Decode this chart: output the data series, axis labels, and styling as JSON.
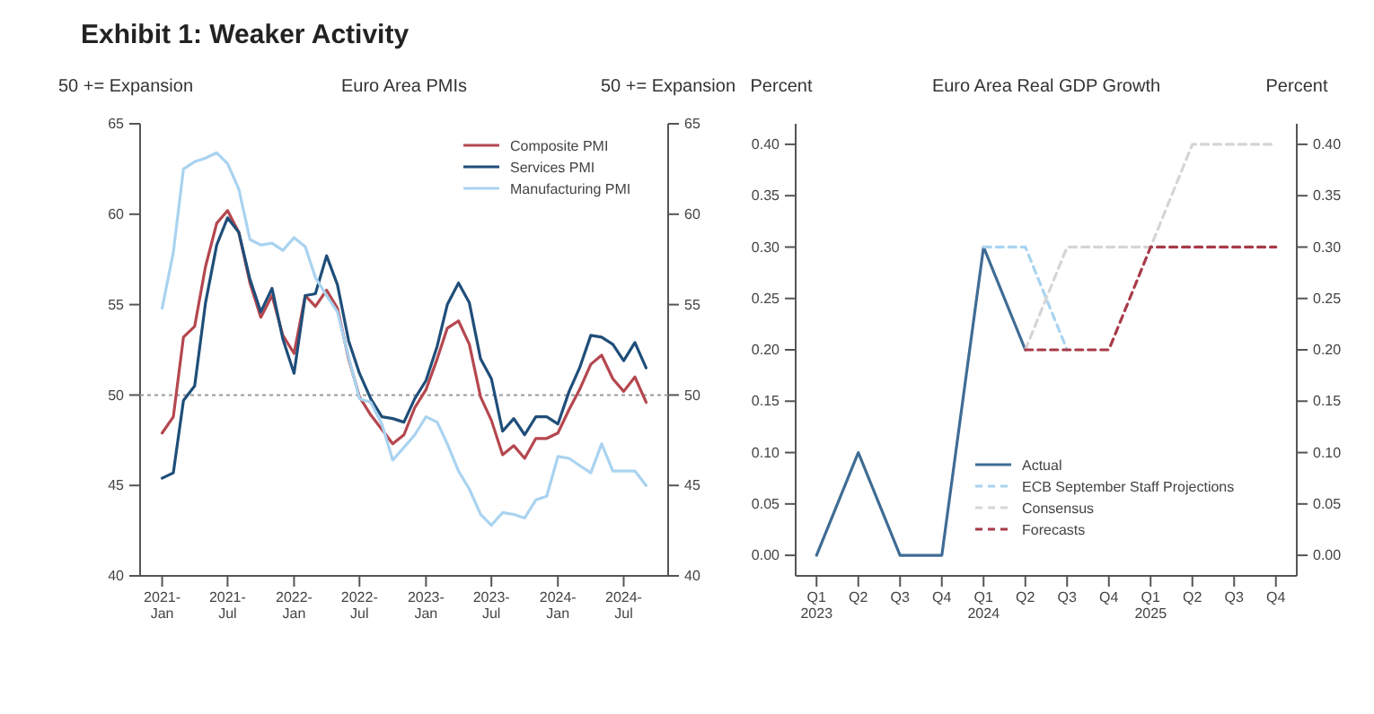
{
  "chart_data": [
    {
      "type": "line",
      "title": "Euro Area PMIs",
      "ylabel": "50 += Expansion",
      "y2label": "50 += Expansion",
      "annotations": [
        "Exhibit 1: Weaker Activity"
      ],
      "x": [
        "2021-01",
        "2021-02",
        "2021-03",
        "2021-04",
        "2021-05",
        "2021-06",
        "2021-07",
        "2021-08",
        "2021-09",
        "2021-10",
        "2021-11",
        "2021-12",
        "2022-01",
        "2022-02",
        "2022-03",
        "2022-04",
        "2022-05",
        "2022-06",
        "2022-07",
        "2022-08",
        "2022-09",
        "2022-10",
        "2022-11",
        "2022-12",
        "2023-01",
        "2023-02",
        "2023-03",
        "2023-04",
        "2023-05",
        "2023-06",
        "2023-07",
        "2023-08",
        "2023-09",
        "2023-10",
        "2023-11",
        "2023-12",
        "2024-01",
        "2024-02",
        "2024-03",
        "2024-04",
        "2024-05",
        "2024-06",
        "2024-07",
        "2024-08",
        "2024-09"
      ],
      "series": [
        {
          "name": "Composite PMI",
          "color": "#b5474f",
          "values": [
            47.9,
            48.8,
            53.2,
            53.8,
            57.1,
            59.5,
            60.2,
            59.0,
            56.2,
            54.3,
            55.5,
            53.3,
            52.3,
            55.5,
            54.9,
            55.8,
            54.8,
            52.0,
            49.9,
            48.9,
            48.1,
            47.3,
            47.8,
            49.3,
            50.3,
            52.0,
            53.7,
            54.1,
            52.8,
            49.9,
            48.6,
            46.7,
            47.2,
            46.5,
            47.6,
            47.6,
            47.9,
            49.2,
            50.3,
            51.7,
            52.2,
            50.9,
            50.2,
            51.0,
            49.6
          ]
        },
        {
          "name": "Services PMI",
          "color": "#1f4e79",
          "values": [
            45.4,
            45.7,
            49.7,
            50.5,
            55.1,
            58.3,
            59.8,
            59.0,
            56.4,
            54.6,
            55.9,
            53.1,
            51.2,
            55.5,
            55.6,
            57.7,
            56.1,
            53.0,
            51.2,
            49.8,
            48.8,
            48.7,
            48.5,
            49.8,
            50.8,
            52.7,
            55.0,
            56.2,
            55.1,
            52.0,
            50.9,
            48.0,
            48.7,
            47.8,
            48.8,
            48.8,
            48.4,
            50.2,
            51.5,
            53.3,
            53.2,
            52.8,
            51.9,
            52.9,
            51.5
          ]
        },
        {
          "name": "Manufacturing PMI",
          "color": "#a9d3f0",
          "values": [
            54.8,
            57.9,
            62.5,
            62.9,
            63.1,
            63.4,
            62.8,
            61.4,
            58.6,
            58.3,
            58.4,
            58.0,
            58.7,
            58.2,
            56.5,
            55.5,
            54.6,
            52.1,
            49.8,
            49.6,
            48.4,
            46.4,
            47.1,
            47.8,
            48.8,
            48.5,
            47.3,
            45.8,
            44.8,
            43.4,
            42.8,
            43.5,
            43.4,
            43.2,
            44.2,
            44.4,
            46.6,
            46.5,
            46.1,
            45.7,
            47.3,
            45.8,
            45.8,
            45.8,
            45.0
          ]
        }
      ],
      "xlim": [
        "2020-11",
        "2024-11"
      ],
      "xticks": [
        {
          "value": "2021-01",
          "label": "2021-\nJan"
        },
        {
          "value": "2021-07",
          "label": "2021-\nJul"
        },
        {
          "value": "2022-01",
          "label": "2022-\nJan"
        },
        {
          "value": "2022-07",
          "label": "2022-\nJul"
        },
        {
          "value": "2023-01",
          "label": "2023-\nJan"
        },
        {
          "value": "2023-07",
          "label": "2023-\nJul"
        },
        {
          "value": "2024-01",
          "label": "2024-\nJan"
        },
        {
          "value": "2024-07",
          "label": "2024-\nJul"
        }
      ],
      "ylim": [
        40,
        65
      ],
      "yticks": [
        40,
        45,
        50,
        55,
        60,
        65
      ],
      "y2lim": [
        40,
        65
      ],
      "y2ticks": [
        40,
        45,
        50,
        55,
        60,
        65
      ],
      "ref_lines": [
        {
          "axis": "y",
          "value": 50,
          "color": "#9a9a9a",
          "line_style": "dotted"
        }
      ],
      "legend": "top right",
      "grid": false,
      "line_style": "solid"
    },
    {
      "type": "line",
      "title": "Euro Area Real GDP Growth",
      "ylabel": "Percent",
      "y2label": "Percent",
      "categories": [
        "Q1\n2023",
        "Q2",
        "Q3",
        "Q4",
        "Q1\n2024",
        "Q2",
        "Q3",
        "Q4",
        "Q1\n2025",
        "Q2",
        "Q3",
        "Q4"
      ],
      "series": [
        {
          "name": "Actual",
          "color": "#3f6c94",
          "line_style": "solid",
          "values": [
            0,
            0.1,
            0,
            0,
            0.3,
            0.2,
            null,
            null,
            null,
            null,
            null,
            null
          ]
        },
        {
          "name": "ECB September Staff Projections",
          "color": "#a9d3f0",
          "line_style": "dashed",
          "values": [
            null,
            null,
            null,
            null,
            0.3,
            0.3,
            0.2,
            null,
            null,
            null,
            null,
            null
          ]
        },
        {
          "name": "Consensus",
          "color": "#d5d5d5",
          "line_style": "dashed",
          "values": [
            null,
            null,
            null,
            null,
            null,
            0.2,
            0.3,
            0.3,
            0.3,
            0.4,
            0.4,
            0.4
          ]
        },
        {
          "name": "Forecasts",
          "color": "#a83a48",
          "line_style": "dashed",
          "values": [
            null,
            null,
            null,
            null,
            null,
            0.2,
            0.2,
            0.2,
            0.3,
            0.3,
            0.3,
            0.3
          ]
        }
      ],
      "ylim": [
        -0.02,
        0.42
      ],
      "yticks": [
        {
          "value": 0,
          "label": "0.00"
        },
        {
          "value": 0.05,
          "label": "0.05"
        },
        {
          "value": 0.1,
          "label": "0.10"
        },
        {
          "value": 0.15,
          "label": "0.15"
        },
        {
          "value": 0.2,
          "label": "0.20"
        },
        {
          "value": 0.25,
          "label": "0.25"
        },
        {
          "value": 0.3,
          "label": "0.30"
        },
        {
          "value": 0.35,
          "label": "0.35"
        },
        {
          "value": 0.4,
          "label": "0.40"
        }
      ],
      "y2lim": [
        -0.02,
        0.42
      ],
      "y2ticks": [
        {
          "value": 0,
          "label": "0.00"
        },
        {
          "value": 0.05,
          "label": "0.05"
        },
        {
          "value": 0.1,
          "label": "0.10"
        },
        {
          "value": 0.15,
          "label": "0.15"
        },
        {
          "value": 0.2,
          "label": "0.20"
        },
        {
          "value": 0.25,
          "label": "0.25"
        },
        {
          "value": 0.3,
          "label": "0.30"
        },
        {
          "value": 0.35,
          "label": "0.35"
        },
        {
          "value": 0.4,
          "label": "0.40"
        }
      ],
      "legend": "bottom right",
      "grid": false
    }
  ]
}
